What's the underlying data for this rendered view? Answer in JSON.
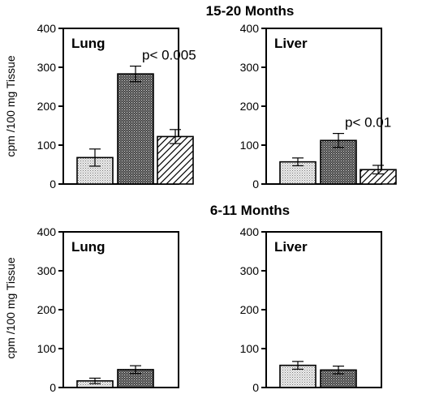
{
  "figure": {
    "ylabel": "cpm /100 mg Tissue"
  },
  "chart_data": [
    {
      "type": "bar",
      "group_title": "15-20 Months",
      "title": "Lung",
      "ylim": [
        0,
        400
      ],
      "yticks": [
        0,
        100,
        200,
        300,
        400
      ],
      "values": [
        68,
        283,
        122
      ],
      "errors": [
        22,
        20,
        18
      ],
      "patterns": [
        "dots-light",
        "dots-dark",
        "hatch"
      ],
      "annotation": {
        "text": "p< 0.005",
        "bar": 1
      }
    },
    {
      "type": "bar",
      "group_title": "15-20 Months",
      "title": "Liver",
      "ylim": [
        0,
        400
      ],
      "yticks": [
        0,
        100,
        200,
        300,
        400
      ],
      "values": [
        57,
        112,
        37
      ],
      "errors": [
        10,
        18,
        11
      ],
      "patterns": [
        "dots-light",
        "dots-dark",
        "hatch"
      ],
      "annotation": {
        "text": "p< 0.01",
        "bar": 1
      }
    },
    {
      "type": "bar",
      "group_title": "6-11 Months",
      "title": "Lung",
      "ylim": [
        0,
        400
      ],
      "yticks": [
        0,
        100,
        200,
        300,
        400
      ],
      "values": [
        17,
        46
      ],
      "errors": [
        7,
        10
      ],
      "patterns": [
        "dots-light",
        "dots-dark"
      ]
    },
    {
      "type": "bar",
      "group_title": "6-11 Months",
      "title": "Liver",
      "ylim": [
        0,
        400
      ],
      "yticks": [
        0,
        100,
        200,
        300,
        400
      ],
      "values": [
        57,
        45
      ],
      "errors": [
        10,
        10
      ],
      "patterns": [
        "dots-light",
        "dots-dark"
      ]
    }
  ],
  "colors": {
    "axis": "#000000",
    "dots_light_bg": "#e9e9e9",
    "dots_dark_bg": "#5a5a5a",
    "hatch_bg": "#ffffff"
  }
}
